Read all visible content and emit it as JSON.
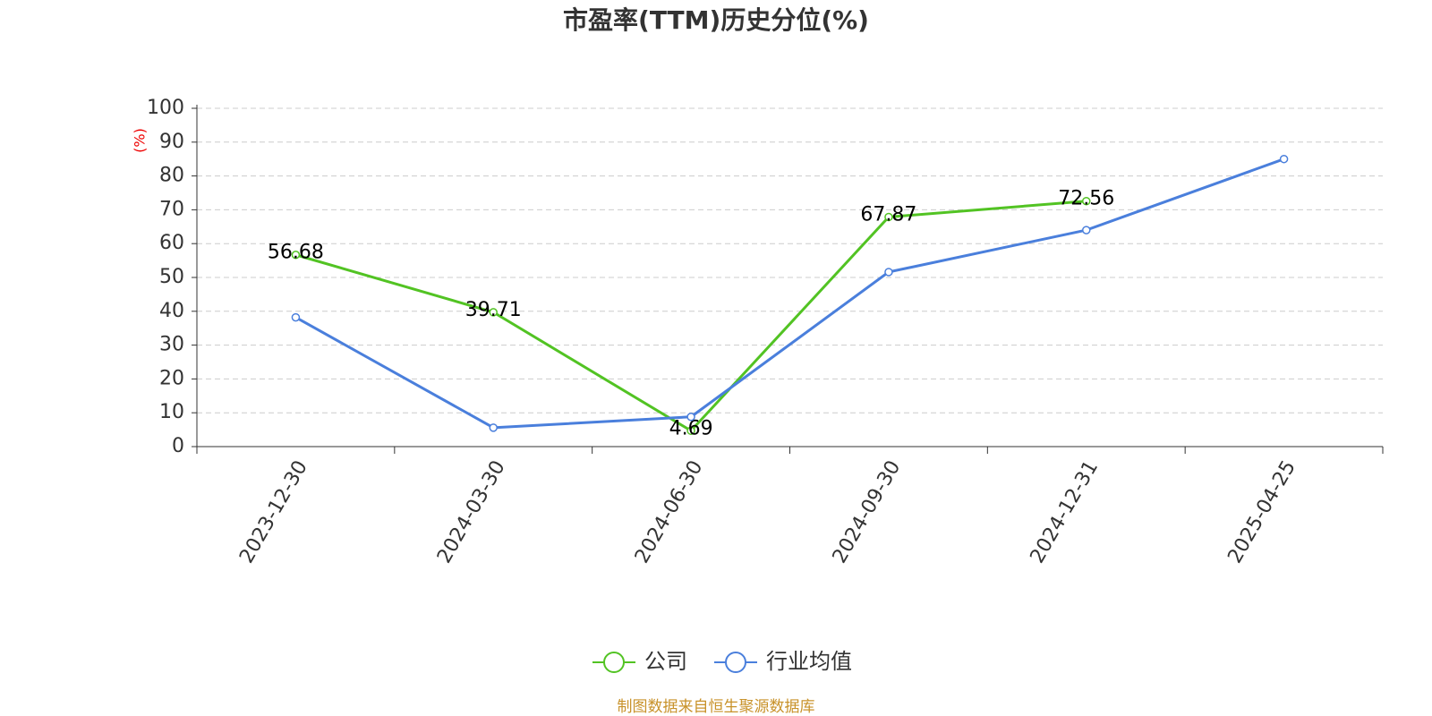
{
  "chart_data": {
    "type": "line",
    "title": "市盈率(TTM)历史分位(%)",
    "y_label": "(%)",
    "categories": [
      "2023-12-30",
      "2024-03-30",
      "2024-06-30",
      "2024-09-30",
      "2024-12-31",
      "2025-04-25"
    ],
    "series": [
      {
        "name": "公司",
        "color": "#52c323",
        "values": [
          56.68,
          39.71,
          4.69,
          67.87,
          72.56,
          null
        ]
      },
      {
        "name": "行业均值",
        "color": "#4a7fdc",
        "values": [
          38.2,
          5.6,
          8.8,
          51.6,
          64,
          85
        ]
      }
    ],
    "ylim": [
      0,
      100
    ],
    "yticks": [
      0,
      10,
      20,
      30,
      40,
      50,
      60,
      70,
      80,
      90,
      100
    ],
    "grid": true,
    "source": "制图数据来自恒生聚源数据库"
  }
}
